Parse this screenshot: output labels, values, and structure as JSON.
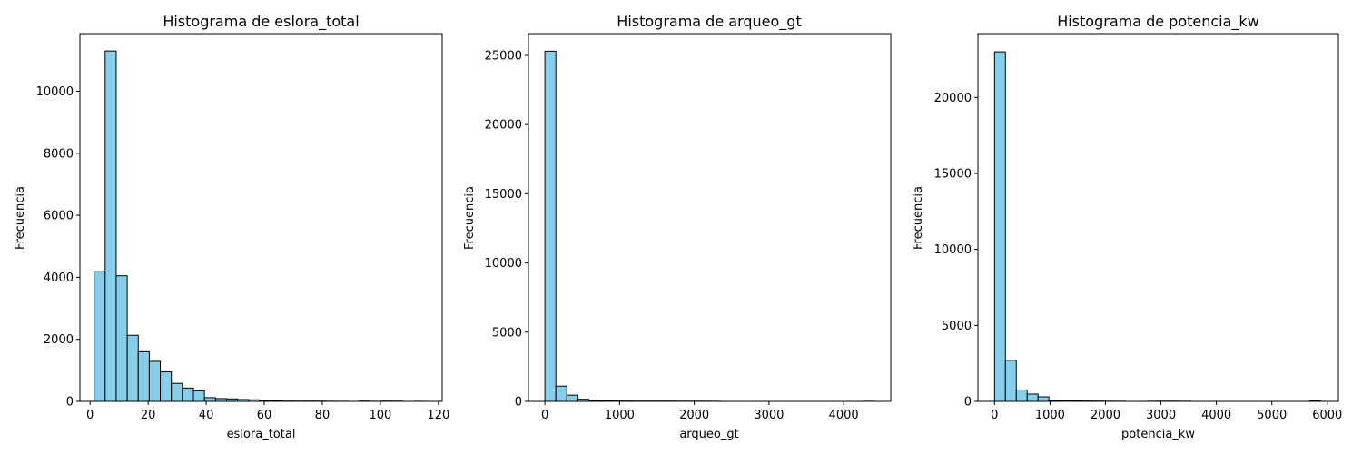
{
  "chart_data": [
    {
      "type": "bar",
      "title": "Histograma de eslora_total",
      "xlabel": "eslora_total",
      "ylabel": "Frecuencia",
      "bin_start": 1.4,
      "bin_width": 3.8,
      "xlim": [
        -3.5,
        121.3
      ],
      "ylim": [
        0,
        11860
      ],
      "xticks": [
        0,
        20,
        40,
        60,
        80,
        100,
        120
      ],
      "yticks": [
        0,
        2000,
        4000,
        6000,
        8000,
        10000
      ],
      "values": [
        4200,
        11300,
        4050,
        2130,
        1600,
        1290,
        950,
        580,
        430,
        340,
        120,
        90,
        80,
        60,
        50,
        20,
        15,
        10,
        8,
        10,
        8,
        5,
        3,
        0,
        10,
        3,
        10,
        8,
        0,
        3
      ],
      "color": "#87ceeb",
      "edgecolor": "#000000",
      "grid": false
    },
    {
      "type": "bar",
      "title": "Histograma de arqueo_gt",
      "xlabel": "arqueo_gt",
      "ylabel": "Frecuencia",
      "bin_start": 0,
      "bin_width": 147,
      "xlim": [
        -220,
        4630
      ],
      "ylim": [
        0,
        26570
      ],
      "xticks": [
        0,
        1000,
        2000,
        3000,
        4000
      ],
      "yticks": [
        0,
        5000,
        10000,
        15000,
        20000,
        25000
      ],
      "values": [
        25300,
        1100,
        450,
        150,
        60,
        40,
        30,
        25,
        20,
        20,
        20,
        20,
        15,
        15,
        15,
        10,
        0,
        0,
        0,
        0,
        0,
        0,
        0,
        0,
        0,
        0,
        0,
        0,
        0,
        10
      ],
      "color": "#87ceeb",
      "edgecolor": "#000000",
      "grid": false
    },
    {
      "type": "bar",
      "title": "Histograma de potencia_kw",
      "xlabel": "potencia_kw",
      "ylabel": "Frecuencia",
      "bin_start": 0,
      "bin_width": 196,
      "xlim": [
        -300,
        6200
      ],
      "ylim": [
        0,
        24200
      ],
      "xticks": [
        0,
        1000,
        2000,
        3000,
        4000,
        5000,
        6000
      ],
      "yticks": [
        0,
        5000,
        10000,
        15000,
        20000
      ],
      "values": [
        23000,
        2700,
        750,
        480,
        300,
        60,
        40,
        30,
        25,
        20,
        15,
        10,
        0,
        0,
        10,
        15,
        15,
        10,
        0,
        0,
        0,
        0,
        0,
        0,
        0,
        0,
        0,
        0,
        0,
        30
      ],
      "color": "#87ceeb",
      "edgecolor": "#000000",
      "grid": false
    }
  ]
}
